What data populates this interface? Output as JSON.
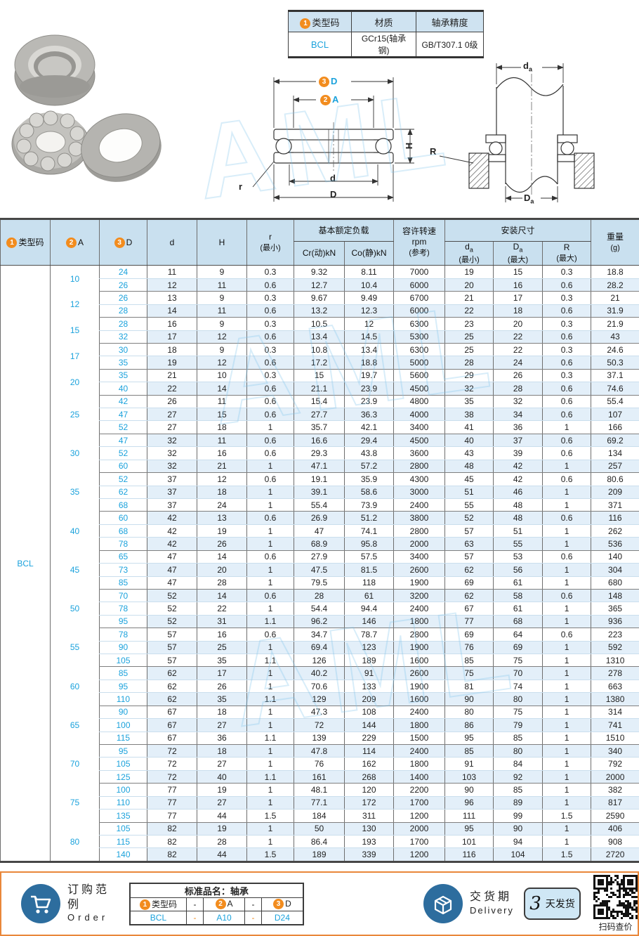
{
  "info_table": {
    "h1_badge": "1",
    "h1": "类型码",
    "h2": "材质",
    "h3": "轴承精度",
    "v1": "BCL",
    "v2": "GCr15(轴承钢)",
    "v3": "GB/T307.1 0级"
  },
  "watermark": {
    "text": "AML"
  },
  "diagram1": {
    "badge3": "3",
    "D_top": "D",
    "badge2": "2",
    "A": "A",
    "H": "H",
    "r": "r",
    "d": "d",
    "D": "D"
  },
  "diagram2": {
    "da_main": "d",
    "da_sub": "a",
    "R": "R",
    "Da_main": "D",
    "Da_sub": "a"
  },
  "main_table": {
    "header": {
      "type_badge": "1",
      "type": "类型码",
      "A_badge": "2",
      "A": "A",
      "D_badge": "3",
      "D": "D",
      "d": "d",
      "H": "H",
      "r1": "r",
      "r2": "(最小)",
      "load_group": "基本额定负载",
      "cr": "Cr(动)kN",
      "co": "Co(静)kN",
      "rpm1": "容许转速",
      "rpm2": "rpm",
      "rpm3": "(参考)",
      "mount_group": "安装尺寸",
      "da_main": "d",
      "da_sub": "a",
      "da_note": "(最小)",
      "Da_main": "D",
      "Da_sub": "a",
      "Da_note": "(最大)",
      "R1": "R",
      "R2": "(最大)",
      "w1": "重量",
      "w2": "(g)"
    },
    "type_code": "BCL",
    "groups": [
      {
        "A": "10",
        "rows": [
          [
            "24",
            "11",
            "9",
            "0.3",
            "9.32",
            "8.11",
            "7000",
            "19",
            "15",
            "0.3",
            "18.8"
          ],
          [
            "26",
            "12",
            "11",
            "0.6",
            "12.7",
            "10.4",
            "6000",
            "20",
            "16",
            "0.6",
            "28.2"
          ]
        ]
      },
      {
        "A": "12",
        "rows": [
          [
            "26",
            "13",
            "9",
            "0.3",
            "9.67",
            "9.49",
            "6700",
            "21",
            "17",
            "0.3",
            "21"
          ],
          [
            "28",
            "14",
            "11",
            "0.6",
            "13.2",
            "12.3",
            "6000",
            "22",
            "18",
            "0.6",
            "31.9"
          ]
        ]
      },
      {
        "A": "15",
        "rows": [
          [
            "28",
            "16",
            "9",
            "0.3",
            "10.5",
            "12",
            "6300",
            "23",
            "20",
            "0.3",
            "21.9"
          ],
          [
            "32",
            "17",
            "12",
            "0.6",
            "13.4",
            "14.5",
            "5300",
            "25",
            "22",
            "0.6",
            "43"
          ]
        ]
      },
      {
        "A": "17",
        "rows": [
          [
            "30",
            "18",
            "9",
            "0.3",
            "10.8",
            "13.4",
            "6300",
            "25",
            "22",
            "0.3",
            "24.6"
          ],
          [
            "35",
            "19",
            "12",
            "0.6",
            "17.2",
            "18.8",
            "5000",
            "28",
            "24",
            "0.6",
            "50.3"
          ]
        ]
      },
      {
        "A": "20",
        "rows": [
          [
            "35",
            "21",
            "10",
            "0.3",
            "15",
            "19.7",
            "5600",
            "29",
            "26",
            "0.3",
            "37.1"
          ],
          [
            "40",
            "22",
            "14",
            "0.6",
            "21.1",
            "23.9",
            "4500",
            "32",
            "28",
            "0.6",
            "74.6"
          ]
        ]
      },
      {
        "A": "25",
        "rows": [
          [
            "42",
            "26",
            "11",
            "0.6",
            "15.4",
            "23.9",
            "4800",
            "35",
            "32",
            "0.6",
            "55.4"
          ],
          [
            "47",
            "27",
            "15",
            "0.6",
            "27.7",
            "36.3",
            "4000",
            "38",
            "34",
            "0.6",
            "107"
          ],
          [
            "52",
            "27",
            "18",
            "1",
            "35.7",
            "42.1",
            "3400",
            "41",
            "36",
            "1",
            "166"
          ]
        ]
      },
      {
        "A": "30",
        "rows": [
          [
            "47",
            "32",
            "11",
            "0.6",
            "16.6",
            "29.4",
            "4500",
            "40",
            "37",
            "0.6",
            "69.2"
          ],
          [
            "52",
            "32",
            "16",
            "0.6",
            "29.3",
            "43.8",
            "3600",
            "43",
            "39",
            "0.6",
            "134"
          ],
          [
            "60",
            "32",
            "21",
            "1",
            "47.1",
            "57.2",
            "2800",
            "48",
            "42",
            "1",
            "257"
          ]
        ]
      },
      {
        "A": "35",
        "rows": [
          [
            "52",
            "37",
            "12",
            "0.6",
            "19.1",
            "35.9",
            "4300",
            "45",
            "42",
            "0.6",
            "80.6"
          ],
          [
            "62",
            "37",
            "18",
            "1",
            "39.1",
            "58.6",
            "3000",
            "51",
            "46",
            "1",
            "209"
          ],
          [
            "68",
            "37",
            "24",
            "1",
            "55.4",
            "73.9",
            "2400",
            "55",
            "48",
            "1",
            "371"
          ]
        ]
      },
      {
        "A": "40",
        "rows": [
          [
            "60",
            "42",
            "13",
            "0.6",
            "26.9",
            "51.2",
            "3800",
            "52",
            "48",
            "0.6",
            "116"
          ],
          [
            "68",
            "42",
            "19",
            "1",
            "47",
            "74.1",
            "2800",
            "57",
            "51",
            "1",
            "262"
          ],
          [
            "78",
            "42",
            "26",
            "1",
            "68.9",
            "95.8",
            "2000",
            "63",
            "55",
            "1",
            "536"
          ]
        ]
      },
      {
        "A": "45",
        "rows": [
          [
            "65",
            "47",
            "14",
            "0.6",
            "27.9",
            "57.5",
            "3400",
            "57",
            "53",
            "0.6",
            "140"
          ],
          [
            "73",
            "47",
            "20",
            "1",
            "47.5",
            "81.5",
            "2600",
            "62",
            "56",
            "1",
            "304"
          ],
          [
            "85",
            "47",
            "28",
            "1",
            "79.5",
            "118",
            "1900",
            "69",
            "61",
            "1",
            "680"
          ]
        ]
      },
      {
        "A": "50",
        "rows": [
          [
            "70",
            "52",
            "14",
            "0.6",
            "28",
            "61",
            "3200",
            "62",
            "58",
            "0.6",
            "148"
          ],
          [
            "78",
            "52",
            "22",
            "1",
            "54.4",
            "94.4",
            "2400",
            "67",
            "61",
            "1",
            "365"
          ],
          [
            "95",
            "52",
            "31",
            "1.1",
            "96.2",
            "146",
            "1800",
            "77",
            "68",
            "1",
            "936"
          ]
        ]
      },
      {
        "A": "55",
        "rows": [
          [
            "78",
            "57",
            "16",
            "0.6",
            "34.7",
            "78.7",
            "2800",
            "69",
            "64",
            "0.6",
            "223"
          ],
          [
            "90",
            "57",
            "25",
            "1",
            "69.4",
            "123",
            "1900",
            "76",
            "69",
            "1",
            "592"
          ],
          [
            "105",
            "57",
            "35",
            "1.1",
            "126",
            "189",
            "1600",
            "85",
            "75",
            "1",
            "1310"
          ]
        ]
      },
      {
        "A": "60",
        "rows": [
          [
            "85",
            "62",
            "17",
            "1",
            "40.2",
            "91",
            "2600",
            "75",
            "70",
            "1",
            "278"
          ],
          [
            "95",
            "62",
            "26",
            "1",
            "70.6",
            "133",
            "1900",
            "81",
            "74",
            "1",
            "663"
          ],
          [
            "110",
            "62",
            "35",
            "1.1",
            "129",
            "209",
            "1600",
            "90",
            "80",
            "1",
            "1380"
          ]
        ]
      },
      {
        "A": "65",
        "rows": [
          [
            "90",
            "67",
            "18",
            "1",
            "47.3",
            "108",
            "2400",
            "80",
            "75",
            "1",
            "314"
          ],
          [
            "100",
            "67",
            "27",
            "1",
            "72",
            "144",
            "1800",
            "86",
            "79",
            "1",
            "741"
          ],
          [
            "115",
            "67",
            "36",
            "1.1",
            "139",
            "229",
            "1500",
            "95",
            "85",
            "1",
            "1510"
          ]
        ]
      },
      {
        "A": "70",
        "rows": [
          [
            "95",
            "72",
            "18",
            "1",
            "47.8",
            "114",
            "2400",
            "85",
            "80",
            "1",
            "340"
          ],
          [
            "105",
            "72",
            "27",
            "1",
            "76",
            "162",
            "1800",
            "91",
            "84",
            "1",
            "792"
          ],
          [
            "125",
            "72",
            "40",
            "1.1",
            "161",
            "268",
            "1400",
            "103",
            "92",
            "1",
            "2000"
          ]
        ]
      },
      {
        "A": "75",
        "rows": [
          [
            "100",
            "77",
            "19",
            "1",
            "48.1",
            "120",
            "2200",
            "90",
            "85",
            "1",
            "382"
          ],
          [
            "110",
            "77",
            "27",
            "1",
            "77.1",
            "172",
            "1700",
            "96",
            "89",
            "1",
            "817"
          ],
          [
            "135",
            "77",
            "44",
            "1.5",
            "184",
            "311",
            "1200",
            "111",
            "99",
            "1.5",
            "2590"
          ]
        ]
      },
      {
        "A": "80",
        "rows": [
          [
            "105",
            "82",
            "19",
            "1",
            "50",
            "130",
            "2000",
            "95",
            "90",
            "1",
            "406"
          ],
          [
            "115",
            "82",
            "28",
            "1",
            "86.4",
            "193",
            "1700",
            "101",
            "94",
            "1",
            "908"
          ],
          [
            "140",
            "82",
            "44",
            "1.5",
            "189",
            "339",
            "1200",
            "116",
            "104",
            "1.5",
            "2720"
          ]
        ]
      }
    ]
  },
  "footer": {
    "order_cn": "订购范例",
    "order_en": "Order",
    "order_table": {
      "title": "标准品名：轴承",
      "h1_badge": "1",
      "h1": "类型码",
      "dash1": "-",
      "h2_badge": "2",
      "h2": "A",
      "dash2": "-",
      "h3_badge": "3",
      "h3": "D",
      "v1": "BCL",
      "vdash1": "-",
      "v2": "A10",
      "vdash2": "-",
      "v3": "D24"
    },
    "delivery_cn": "交货期",
    "delivery_en": "Delivery",
    "delivery_days": "3",
    "delivery_unit": "天发货",
    "qr_caption": "扫码查价"
  }
}
